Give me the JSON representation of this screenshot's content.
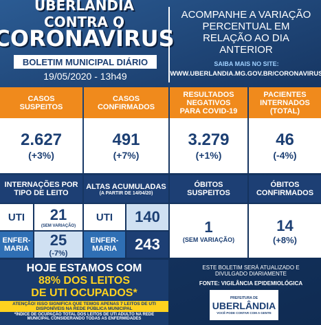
{
  "header": {
    "title_line1": "UBERLÂNDIA CONTRA O",
    "title_line2": "CORONAVÍRUS",
    "subtitle": "BOLETIM MUNICIPAL DIÁRIO",
    "date": "19/05/2020 - 13h49",
    "info": "ACOMPANHE A VARIAÇÃO PERCENTUAL EM RELAÇÃO AO DIA ANTERIOR",
    "site_label": "SAIBA MAIS NO SITE:",
    "site": "WWW.UBERLANDIA.MG.GOV.BR/CORONAVIRUS"
  },
  "stats": [
    {
      "label": "CASOS SUSPEITOS",
      "value": "2.627",
      "change": "(+3%)"
    },
    {
      "label": "CASOS CONFIRMADOS",
      "value": "491",
      "change": "(+7%)"
    },
    {
      "label": "RESULTADOS NEGATIVOS PARA COVID-19",
      "value": "3.279",
      "change": "(+1%)"
    },
    {
      "label": "PACIENTES INTERNADOS (TOTAL)",
      "value": "46",
      "change": "(-4%)"
    }
  ],
  "hospital": {
    "label": "INTERNAÇÕES POR TIPO DE LEITO",
    "uti_label": "UTI",
    "uti_value": "21",
    "uti_change": "(SEM VARIAÇÃO)",
    "ward_label": "ENFER-MARIA",
    "ward_value": "25",
    "ward_change": "(-7%)"
  },
  "discharges": {
    "label": "ALTAS ACUMULADAS",
    "note": "(A PARTIR DE 14/04/20)",
    "uti_label": "UTI",
    "uti_value": "140",
    "ward_label": "ENFER-MARIA",
    "ward_value": "243"
  },
  "deaths": [
    {
      "label": "ÓBITOS SUSPEITOS",
      "value": "1",
      "change": "(SEM VARIAÇÃO)"
    },
    {
      "label": "ÓBITOS CONFIRMADOS",
      "value": "14",
      "change": "(+8%)"
    }
  ],
  "footer": {
    "line1": "HOJE ESTAMOS COM",
    "line2": "88% DOS LEITOS",
    "line3": "DE UTI OCUPADOS*",
    "warning": "ATENÇÃO! ISSO SIGNIFICA QUE TEMOS APENAS 7 LEITOS DE UTI DISPONÍVEIS NA REDE PÚBLICA MUNICIPAL",
    "footnote": "*ÍNDICE DE OCUPAÇÃO TOTAL DOS LEITOS DE UTI ADULTO NA REDE MUNICIPAL CONSIDERANDO TODAS AS ENFERMIDADES",
    "update": "ESTE BOLETIM SERÁ ATUALIZADO E DIVULGADO DIARIAMENTE",
    "source": "FONTE: VIGILÂNCIA EPIDEMIOLÓGICA",
    "logo_top": "PREFEITURA DE",
    "logo_name": "UBERLÂNDIA",
    "logo_slogan": "VOCÊ PODE CONTAR COM A GENTE"
  }
}
